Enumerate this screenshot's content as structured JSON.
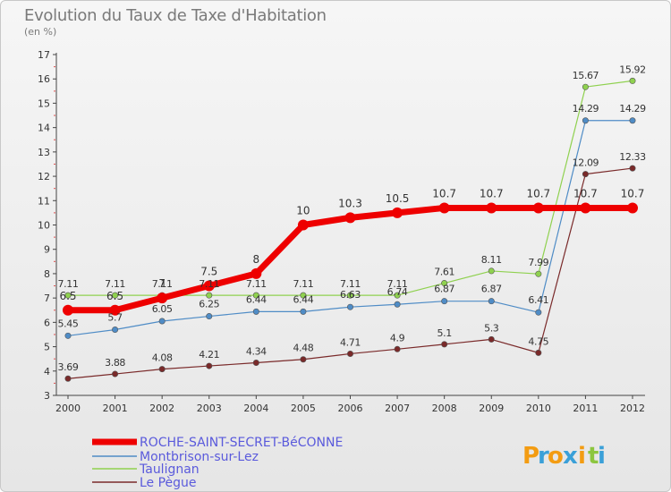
{
  "chart_data": {
    "type": "line",
    "title": "Evolution du Taux de Taxe d'Habitation",
    "ylabel": "(en %)",
    "xlabel": "",
    "ylim": [
      3,
      17
    ],
    "yticks": [
      3,
      4,
      5,
      6,
      7,
      8,
      9,
      10,
      11,
      12,
      13,
      14,
      15,
      16,
      17
    ],
    "categories": [
      "2000",
      "2001",
      "2002",
      "2003",
      "2004",
      "2005",
      "2006",
      "2007",
      "2008",
      "2009",
      "2010",
      "2011",
      "2012"
    ],
    "grid": false,
    "legend_position": "bottom-left",
    "series": [
      {
        "name": "ROCHE-SAINT-SECRET-BéCONNE",
        "color": "#ee0000",
        "values": [
          6.5,
          6.5,
          7.0,
          7.5,
          8.0,
          10.0,
          10.3,
          10.5,
          10.7,
          10.7,
          10.7,
          10.7,
          10.7
        ],
        "labels": [
          "6.5",
          "6.5",
          "7",
          "7.5",
          "8",
          "10",
          "10.3",
          "10.5",
          "10.7",
          "10.7",
          "10.7",
          "10.7",
          "10.7"
        ]
      },
      {
        "name": "Montbrison-sur-Lez",
        "color": "#4f8cc6",
        "values": [
          5.45,
          5.7,
          6.05,
          6.25,
          6.44,
          6.44,
          6.63,
          6.74,
          6.87,
          6.87,
          6.41,
          14.29,
          14.29
        ],
        "labels": [
          "5.45",
          "5.7",
          "6.05",
          "6.25",
          "6.44",
          "6.44",
          "6.63",
          "6.74",
          "6.87",
          "6.87",
          "6.41",
          "14.29",
          "14.29"
        ]
      },
      {
        "name": "Taulignan",
        "color": "#8fd14f",
        "values": [
          7.11,
          7.11,
          7.11,
          7.11,
          7.11,
          7.11,
          7.11,
          7.11,
          7.61,
          8.11,
          7.99,
          15.67,
          15.92
        ],
        "labels": [
          "7.11",
          "7.11",
          "7.11",
          "7.11",
          "7.11",
          "7.11",
          "7.11",
          "7.11",
          "7.61",
          "8.11",
          "7.99",
          "15.67",
          "15.92"
        ]
      },
      {
        "name": "Le Pègue",
        "color": "#7a2a2a",
        "values": [
          3.69,
          3.88,
          4.08,
          4.21,
          4.34,
          4.48,
          4.71,
          4.9,
          5.1,
          5.3,
          4.75,
          12.09,
          12.33
        ],
        "labels": [
          "3.69",
          "3.88",
          "4.08",
          "4.21",
          "4.34",
          "4.48",
          "4.71",
          "4.9",
          "5.1",
          "5.3",
          "4.75",
          "12.09",
          "12.33"
        ]
      }
    ]
  },
  "legend": {
    "items": [
      {
        "label": "ROCHE-SAINT-SECRET-BéCONNE"
      },
      {
        "label": "Montbrison-sur-Lez"
      },
      {
        "label": "Taulignan"
      },
      {
        "label": "Le Pègue"
      }
    ]
  },
  "logo": {
    "letters": [
      "P",
      "r",
      "o",
      "x",
      "i",
      "t",
      "i"
    ],
    "colors": [
      "#f39c12",
      "#3aa0d8",
      "#f39c12",
      "#3aa0d8",
      "#f39c12",
      "#8cc63f",
      "#3aa0d8"
    ]
  }
}
